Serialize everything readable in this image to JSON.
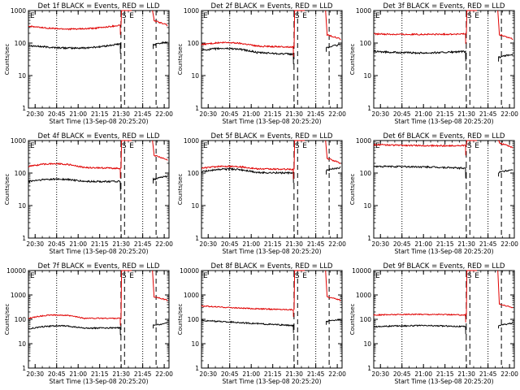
{
  "figure": {
    "xlabel": "Start Time (13-Sep-08 20:25:20)",
    "ylabel": "Counts/sec",
    "colors": {
      "black_series": "#000000",
      "red_series": "#e00000",
      "axes": "#000000"
    },
    "x_ticks": [
      "20:30",
      "20:45",
      "21:00",
      "21:15",
      "21:30",
      "21:45",
      "22:00"
    ],
    "markers": {
      "start": "E",
      "s_marker": "S",
      "e_marker": "E"
    }
  },
  "chart_data": [
    {
      "type": "line",
      "title": "Det 1f BLACK = Events, RED = LLD",
      "ylim": [
        1,
        1000
      ],
      "yscale": "log",
      "y_ticks": [
        "1",
        "10",
        "100",
        "1000"
      ],
      "series": [
        {
          "name": "BLACK = Events",
          "shape": "bathtub",
          "start": 85,
          "mid": 70,
          "end": 95,
          "after": 110
        },
        {
          "name": "RED = LLD",
          "shape": "bathtub",
          "start": 330,
          "mid": 270,
          "end": 360,
          "peak": 1000,
          "after": 350
        }
      ]
    },
    {
      "type": "line",
      "title": "Det 2f BLACK = Events, RED = LLD",
      "ylim": [
        1,
        1000
      ],
      "yscale": "log",
      "y_ticks": [
        "1",
        "10",
        "100",
        "1000"
      ],
      "series": [
        {
          "name": "BLACK = Events",
          "shape": "hump",
          "start": 60,
          "mid": 65,
          "end": 45,
          "after": 90
        },
        {
          "name": "RED = LLD",
          "shape": "hump",
          "start": 90,
          "mid": 100,
          "end": 75,
          "peak": 1000,
          "after": 130
        }
      ]
    },
    {
      "type": "line",
      "title": "Det 3f BLACK = Events, RED = LLD",
      "ylim": [
        1,
        1000
      ],
      "yscale": "log",
      "y_ticks": [
        "1",
        "10",
        "100",
        "1000"
      ],
      "series": [
        {
          "name": "BLACK = Events",
          "shape": "flat",
          "start": 55,
          "mid": 50,
          "end": 55,
          "after": 45
        },
        {
          "name": "RED = LLD",
          "shape": "flat",
          "start": 190,
          "mid": 185,
          "end": 190,
          "peak": 1000,
          "after": 130
        }
      ]
    },
    {
      "type": "line",
      "title": "Det 4f BLACK = Events, RED = LLD",
      "ylim": [
        1,
        1000
      ],
      "yscale": "log",
      "y_ticks": [
        "1",
        "10",
        "100",
        "1000"
      ],
      "series": [
        {
          "name": "BLACK = Events",
          "shape": "hump",
          "start": 55,
          "mid": 65,
          "end": 55,
          "after": 80
        },
        {
          "name": "RED = LLD",
          "shape": "hump",
          "start": 160,
          "mid": 190,
          "end": 140,
          "peak": 1000,
          "after": 250
        }
      ]
    },
    {
      "type": "line",
      "title": "Det 5f BLACK = Events, RED = LLD",
      "ylim": [
        1,
        1000
      ],
      "yscale": "log",
      "y_ticks": [
        "1",
        "10",
        "100",
        "1000"
      ],
      "series": [
        {
          "name": "BLACK = Events",
          "shape": "hump",
          "start": 110,
          "mid": 130,
          "end": 100,
          "after": 150
        },
        {
          "name": "RED = LLD",
          "shape": "hump",
          "start": 140,
          "mid": 160,
          "end": 130,
          "peak": 1000,
          "after": 200
        }
      ]
    },
    {
      "type": "line",
      "title": "Det 6f BLACK = Events, RED = LLD",
      "ylim": [
        1,
        1000
      ],
      "yscale": "log",
      "y_ticks": [
        "1",
        "10",
        "100",
        "1000"
      ],
      "series": [
        {
          "name": "BLACK = Events",
          "shape": "flat",
          "start": 160,
          "mid": 155,
          "end": 140,
          "after": 130
        },
        {
          "name": "RED = LLD",
          "shape": "flat",
          "start": 750,
          "mid": 700,
          "end": 700,
          "peak": 1000,
          "after": 600
        }
      ]
    },
    {
      "type": "line",
      "title": "Det 7f BLACK = Events, RED = LLD",
      "ylim": [
        1,
        10000
      ],
      "yscale": "log",
      "y_ticks": [
        "1",
        "10",
        "100",
        "1000",
        "10000"
      ],
      "series": [
        {
          "name": "BLACK = Events",
          "shape": "hump",
          "start": 40,
          "mid": 55,
          "end": 45,
          "after": 70
        },
        {
          "name": "RED = LLD",
          "shape": "hump",
          "start": 110,
          "mid": 150,
          "end": 110,
          "peak": 10000,
          "after": 600
        }
      ]
    },
    {
      "type": "line",
      "title": "Det 8f BLACK = Events, RED = LLD",
      "ylim": [
        1,
        10000
      ],
      "yscale": "log",
      "y_ticks": [
        "1",
        "10",
        "100",
        "1000",
        "10000"
      ],
      "series": [
        {
          "name": "BLACK = Events",
          "shape": "declining",
          "start": 90,
          "mid": 70,
          "end": 55,
          "after": 100
        },
        {
          "name": "RED = LLD",
          "shape": "declining",
          "start": 350,
          "mid": 280,
          "end": 250,
          "peak": 10000,
          "after": 600
        }
      ]
    },
    {
      "type": "line",
      "title": "Det 9f BLACK = Events, RED = LLD",
      "ylim": [
        1,
        10000
      ],
      "yscale": "log",
      "y_ticks": [
        "1",
        "10",
        "100",
        "1000",
        "10000"
      ],
      "series": [
        {
          "name": "BLACK = Events",
          "shape": "flat",
          "start": 50,
          "mid": 55,
          "end": 50,
          "after": 70
        },
        {
          "name": "RED = LLD",
          "shape": "flat",
          "start": 150,
          "mid": 160,
          "end": 150,
          "peak": 10000,
          "after": 300
        }
      ]
    }
  ]
}
